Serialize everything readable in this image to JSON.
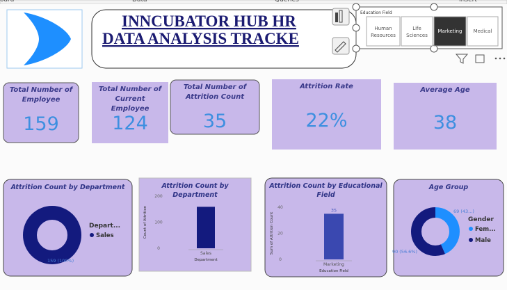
{
  "ribbon": [
    "oard",
    "Data",
    "Queries",
    "Insert"
  ],
  "header": {
    "title_lines": [
      "INNCUBATOR HUB HR",
      "DATA ANALYSIS TRACKE"
    ]
  },
  "slicer": {
    "title": "Education Field",
    "options": [
      "Human Resources",
      "Life Sciences",
      "Marketing",
      "Medical"
    ],
    "selected": 2
  },
  "cards": [
    {
      "label": "Total Number of Employee",
      "value": "159"
    },
    {
      "label": "Total Number of Current Employee",
      "value": "124"
    },
    {
      "label": "Total Number of Attrition Count",
      "value": "35"
    },
    {
      "label": "Attrition Rate",
      "value": "22%"
    },
    {
      "label": "Average Age",
      "value": "38"
    }
  ],
  "charts": [
    {
      "type": "donut",
      "title": "Attrition Count by Department",
      "legend_title": "Depart...",
      "categories": [
        "Sales"
      ],
      "values": [
        159
      ],
      "value_labels": [
        "159 (100%)"
      ],
      "colors": [
        "#131a7e"
      ]
    },
    {
      "type": "bar",
      "title": "Attrition Count by Department",
      "categories": [
        "Sales"
      ],
      "values": [
        159
      ],
      "color": "#131a7e",
      "x_label": "Department",
      "y_label": "Count of Attrition",
      "ylim": [
        0,
        200
      ],
      "yticks": [
        0,
        100,
        200
      ]
    },
    {
      "type": "bar",
      "title": "Attrition Count by Educational Field",
      "categories": [
        "Marketing"
      ],
      "values": [
        35
      ],
      "color": "#3a48b0",
      "x_label": "Education Field",
      "y_label": "Sum of Attrition Count",
      "ylim": [
        0,
        40
      ],
      "yticks": [
        0,
        20,
        40
      ],
      "data_labels": true
    },
    {
      "type": "donut",
      "title": "Age Group",
      "legend_title": "Gender",
      "categories": [
        "Fem...",
        "Male"
      ],
      "values": [
        69,
        90
      ],
      "value_labels": [
        "69 (43...)",
        "90 (56.6%)"
      ],
      "colors": [
        "#1e8fff",
        "#131a7e"
      ]
    }
  ]
}
